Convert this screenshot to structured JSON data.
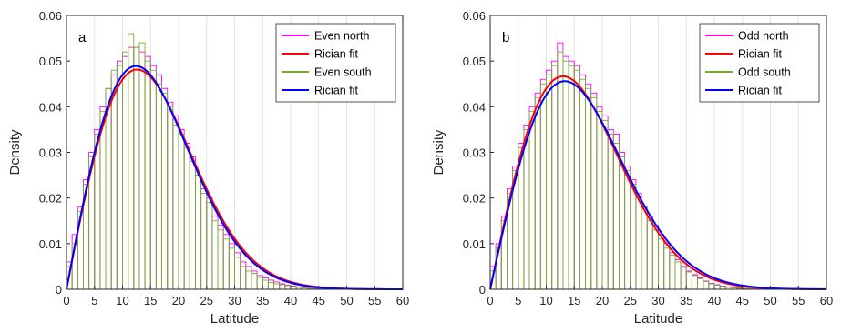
{
  "chart_data": [
    {
      "type": "histogram",
      "panel_label": "a",
      "xlabel": "Latitude",
      "ylabel": "Density",
      "xlim": [
        0,
        60
      ],
      "ylim": [
        0,
        0.06
      ],
      "xticks": [
        "0",
        "5",
        "10",
        "15",
        "20",
        "25",
        "30",
        "35",
        "40",
        "45",
        "50",
        "55",
        "60"
      ],
      "yticks": [
        "0",
        "0.01",
        "0.02",
        "0.03",
        "0.04",
        "0.05",
        "0.06"
      ],
      "grid": "vertical",
      "legend_position": "top-right",
      "legend": [
        "Even north",
        "Rician fit",
        "Even south",
        "Rician fit"
      ],
      "bin_width": 1,
      "series": [
        {
          "name": "Even north",
          "kind": "histogram",
          "color": "#ff00ff",
          "values": [
            0.006,
            0.012,
            0.018,
            0.024,
            0.03,
            0.035,
            0.04,
            0.044,
            0.047,
            0.05,
            0.051,
            0.053,
            0.053,
            0.052,
            0.051,
            0.049,
            0.047,
            0.044,
            0.041,
            0.038,
            0.035,
            0.032,
            0.029,
            0.025,
            0.022,
            0.02,
            0.016,
            0.014,
            0.012,
            0.01,
            0.008,
            0.006,
            0.005,
            0.004,
            0.003,
            0.0025,
            0.002,
            0.0016,
            0.0012,
            0.0009,
            0.0007,
            0.0005,
            0.0004,
            0.0003,
            0.0002,
            0.00015,
            0.0001,
            0.0001,
            8e-05,
            5e-05
          ]
        },
        {
          "name": "Rician fit",
          "kind": "curve",
          "color": "#ff0000",
          "sigma": 12.6
        },
        {
          "name": "Even south",
          "kind": "histogram",
          "color": "#77ac30",
          "values": [
            0.005,
            0.01,
            0.017,
            0.023,
            0.029,
            0.034,
            0.039,
            0.044,
            0.048,
            0.049,
            0.052,
            0.056,
            0.053,
            0.054,
            0.05,
            0.048,
            0.045,
            0.043,
            0.04,
            0.036,
            0.034,
            0.031,
            0.028,
            0.025,
            0.021,
            0.019,
            0.015,
            0.013,
            0.011,
            0.009,
            0.007,
            0.005,
            0.004,
            0.0035,
            0.0026,
            0.002,
            0.0015,
            0.0012,
            0.001,
            0.0008,
            0.0006,
            0.0004,
            0.0003,
            0.0002,
            0.00015,
            0.0001,
            0.0001,
            8e-05,
            5e-05,
            3e-05
          ]
        },
        {
          "name": "Rician fit",
          "kind": "curve",
          "color": "#0000ff",
          "sigma": 12.4
        }
      ]
    },
    {
      "type": "histogram",
      "panel_label": "b",
      "xlabel": "Latitude",
      "ylabel": "Density",
      "xlim": [
        0,
        60
      ],
      "ylim": [
        0,
        0.06
      ],
      "xticks": [
        "0",
        "5",
        "10",
        "15",
        "20",
        "25",
        "30",
        "35",
        "40",
        "45",
        "50",
        "55",
        "60"
      ],
      "yticks": [
        "0",
        "0.01",
        "0.02",
        "0.03",
        "0.04",
        "0.05",
        "0.06"
      ],
      "grid": "vertical",
      "legend_position": "top-right",
      "legend": [
        "Odd north",
        "Rician fit",
        "Odd south",
        "Rician fit"
      ],
      "bin_width": 1,
      "series": [
        {
          "name": "Odd north",
          "kind": "histogram",
          "color": "#ff00ff",
          "values": [
            0.005,
            0.01,
            0.016,
            0.022,
            0.027,
            0.032,
            0.036,
            0.04,
            0.043,
            0.046,
            0.048,
            0.05,
            0.054,
            0.051,
            0.05,
            0.049,
            0.047,
            0.045,
            0.043,
            0.04,
            0.038,
            0.035,
            0.034,
            0.03,
            0.027,
            0.024,
            0.021,
            0.018,
            0.016,
            0.014,
            0.012,
            0.01,
            0.008,
            0.0065,
            0.005,
            0.004,
            0.0032,
            0.0025,
            0.0018,
            0.0013,
            0.001,
            0.0007,
            0.0005,
            0.0004,
            0.0003,
            0.0002,
            0.00015,
            0.0001,
            8e-05,
            5e-05
          ]
        },
        {
          "name": "Rician fit",
          "kind": "curve",
          "color": "#ff0000",
          "sigma": 13.0
        },
        {
          "name": "Odd south",
          "kind": "histogram",
          "color": "#77ac30",
          "values": [
            0.004,
            0.009,
            0.015,
            0.021,
            0.026,
            0.031,
            0.035,
            0.039,
            0.042,
            0.045,
            0.047,
            0.049,
            0.052,
            0.05,
            0.049,
            0.048,
            0.046,
            0.044,
            0.042,
            0.039,
            0.037,
            0.034,
            0.032,
            0.029,
            0.026,
            0.023,
            0.02,
            0.018,
            0.015,
            0.013,
            0.011,
            0.009,
            0.0075,
            0.006,
            0.0048,
            0.0038,
            0.003,
            0.0023,
            0.0017,
            0.0012,
            0.0009,
            0.0006,
            0.0004,
            0.0003,
            0.0002,
            0.00015,
            0.0001,
            8e-05,
            5e-05,
            3e-05
          ]
        },
        {
          "name": "Rician fit",
          "kind": "curve",
          "color": "#0000ff",
          "sigma": 13.3
        }
      ]
    }
  ]
}
